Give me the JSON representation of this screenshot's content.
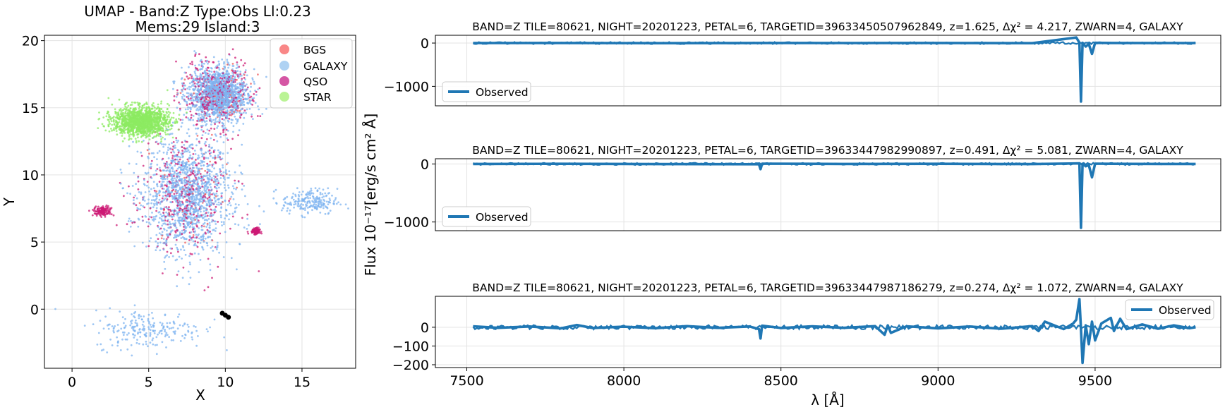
{
  "chart_data": [
    {
      "type": "scatter",
      "title_line1": "UMAP  -  Band:Z Type:Obs Ll:0.23",
      "title_line2": "Mems:29 Island:3",
      "xlabel": "X",
      "ylabel": "Y",
      "xlim": [
        -1.8,
        18.5
      ],
      "ylim": [
        -4.4,
        20.4
      ],
      "xticks": [
        0,
        5,
        10,
        15
      ],
      "yticks": [
        0,
        5,
        10,
        15,
        20
      ],
      "grid": true,
      "legend_position": "top-right",
      "legend": [
        {
          "name": "BGS",
          "color": "#f87a7a"
        },
        {
          "name": "GALAXY",
          "color": "#a6cdf2"
        },
        {
          "name": "QSO",
          "color": "#d0449a"
        },
        {
          "name": "STAR",
          "color": "#b2f28a"
        }
      ],
      "colors": {
        "galaxy_points": "#7fb4f0",
        "qso_points": "#cc1a74",
        "star_points": "#8ceb62",
        "bgs_points": "#f06060",
        "highlight": "#000000"
      },
      "regions": [
        {
          "class": "GALAXY",
          "center": [
            7.5,
            8.5
          ],
          "spread": [
            2.4,
            3.6
          ],
          "density": "dense"
        },
        {
          "class": "GALAXY",
          "center": [
            9.5,
            16.0
          ],
          "spread": [
            1.6,
            1.8
          ],
          "density": "dense"
        },
        {
          "class": "STAR",
          "center": [
            4.5,
            14.0
          ],
          "spread": [
            1.5,
            0.9
          ],
          "density": "dense"
        },
        {
          "class": "QSO",
          "center": [
            2.0,
            7.3
          ],
          "spread": [
            0.5,
            0.3
          ],
          "density": "cluster"
        },
        {
          "class": "QSO",
          "center": [
            12.0,
            5.8
          ],
          "spread": [
            0.2,
            0.2
          ],
          "density": "cluster"
        },
        {
          "class": "GALAXY",
          "center": [
            15.5,
            8.0
          ],
          "spread": [
            1.5,
            0.8
          ],
          "density": "sparse"
        },
        {
          "class": "GALAXY",
          "center": [
            5.0,
            -1.5
          ],
          "spread": [
            3.0,
            1.2
          ],
          "density": "sparse"
        }
      ],
      "highlighted_points": [
        [
          9.8,
          -0.3
        ],
        [
          10.0,
          -0.45
        ],
        [
          10.2,
          -0.6
        ]
      ]
    },
    {
      "type": "line",
      "title": "BAND=Z TILE=80621, NIGHT=20201223, PETAL=6, TARGETID=39633450507962849, z=1.625, Δχ² = 4.217, ZWARN=4, GALAXY",
      "legend_position": "lower-left",
      "ylim": [
        -1450,
        180
      ],
      "yticks": [
        0,
        -1000
      ],
      "ytick_labels": [
        "0",
        "−1000"
      ],
      "series": [
        {
          "name": "Observed",
          "color": "#1f77b4",
          "x": [
            7520,
            7800,
            8100,
            8430,
            8700,
            9000,
            9300,
            9440,
            9450,
            9455,
            9460,
            9470,
            9480,
            9490,
            9500,
            9550,
            9700,
            9820
          ],
          "y": [
            0,
            2,
            -3,
            2,
            0,
            3,
            -2,
            130,
            10,
            -1350,
            5,
            -80,
            -20,
            -250,
            5,
            2,
            0,
            0
          ]
        }
      ]
    },
    {
      "type": "line",
      "title": "BAND=Z TILE=80621, NIGHT=20201223, PETAL=6, TARGETID=39633447982990897, z=0.491, Δχ² = 5.081, ZWARN=4, GALAXY",
      "legend_position": "lower-left",
      "ylim": [
        -1150,
        90
      ],
      "yticks": [
        0,
        -1000
      ],
      "ytick_labels": [
        "0",
        "−1000"
      ],
      "series": [
        {
          "name": "Observed",
          "color": "#1f77b4",
          "x": [
            7520,
            7800,
            8100,
            8430,
            8435,
            8440,
            8700,
            9000,
            9300,
            9450,
            9455,
            9460,
            9470,
            9480,
            9490,
            9500,
            9550,
            9700,
            9820
          ],
          "y": [
            0,
            2,
            -2,
            -5,
            -90,
            5,
            0,
            3,
            -2,
            10,
            -1100,
            5,
            -40,
            -20,
            -230,
            5,
            2,
            0,
            0
          ]
        }
      ]
    },
    {
      "type": "line",
      "title": "BAND=Z TILE=80621, NIGHT=20201223, PETAL=6, TARGETID=39633447987186279, z=0.274, Δχ² = 1.072, ZWARN=4, GALAXY",
      "legend_position": "top-right",
      "xlabel": "λ [Å]",
      "xlim": [
        7400,
        9900
      ],
      "xticks": [
        7500,
        8000,
        8500,
        9000,
        9500
      ],
      "ylim": [
        -215,
        165
      ],
      "yticks": [
        0,
        -100,
        -200
      ],
      "ytick_labels": [
        "0",
        "−100",
        "−200"
      ],
      "series": [
        {
          "name": "Observed",
          "color": "#1f77b4",
          "x": [
            7520,
            7600,
            7700,
            7800,
            7850,
            7900,
            8000,
            8100,
            8200,
            8300,
            8400,
            8430,
            8435,
            8440,
            8500,
            8600,
            8700,
            8800,
            8830,
            8840,
            8850,
            8900,
            9000,
            9100,
            9200,
            9300,
            9320,
            9340,
            9400,
            9430,
            9440,
            9450,
            9455,
            9460,
            9470,
            9480,
            9490,
            9500,
            9520,
            9550,
            9560,
            9580,
            9600,
            9650,
            9700,
            9750,
            9800,
            9820
          ],
          "y": [
            5,
            -3,
            4,
            -6,
            12,
            -4,
            3,
            -5,
            6,
            -3,
            4,
            -10,
            -60,
            8,
            -4,
            5,
            -3,
            6,
            -40,
            10,
            -30,
            5,
            -6,
            4,
            -8,
            6,
            -20,
            30,
            -10,
            20,
            40,
            150,
            -10,
            -190,
            10,
            -90,
            30,
            -70,
            20,
            50,
            -20,
            45,
            -10,
            15,
            -8,
            10,
            -5,
            0
          ]
        }
      ]
    }
  ],
  "shared": {
    "ylabel": "Flux 10⁻¹⁷[erg/s cm² Å]"
  }
}
